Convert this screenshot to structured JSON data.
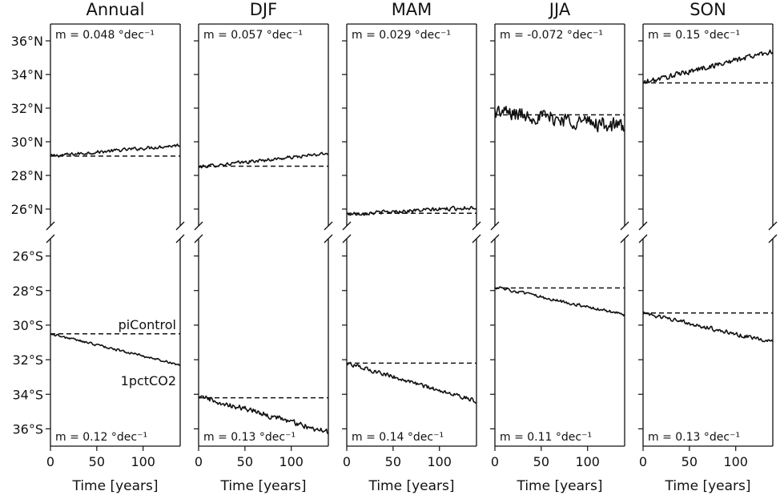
{
  "chart_data": {
    "type": "line",
    "x_label": "Time [years]",
    "x_ticks": [
      0,
      50,
      100
    ],
    "xlim": [
      0,
      140
    ],
    "top_ylim": [
      25,
      37
    ],
    "top_ytick_labels": [
      {
        "value": 26,
        "label": "26°N"
      },
      {
        "value": 28,
        "label": "28°N"
      },
      {
        "value": 30,
        "label": "30°N"
      },
      {
        "value": 32,
        "label": "32°N"
      },
      {
        "value": 34,
        "label": "34°N"
      },
      {
        "value": 36,
        "label": "36°N"
      }
    ],
    "bottom_ylim": [
      -37,
      -25
    ],
    "bottom_ytick_labels": [
      {
        "value": -26,
        "label": "26°S"
      },
      {
        "value": -28,
        "label": "28°S"
      },
      {
        "value": -30,
        "label": "30°S"
      },
      {
        "value": -32,
        "label": "32°S"
      },
      {
        "value": -34,
        "label": "34°S"
      },
      {
        "value": -36,
        "label": "36°S"
      }
    ],
    "legend": {
      "piControl": "piControl",
      "onepct": "1pctCO2"
    },
    "panels": [
      {
        "title": "Annual",
        "north": {
          "picontrol": 29.15,
          "start": 29.15,
          "end": 29.8,
          "noise": 0.12,
          "slope_label": "m = 0.048 °dec⁻¹"
        },
        "south": {
          "picontrol": -30.5,
          "start": -30.5,
          "end": -32.3,
          "noise": 0.08,
          "slope_label": "m = 0.12 °dec⁻¹"
        }
      },
      {
        "title": "DJF",
        "north": {
          "picontrol": 28.55,
          "start": 28.5,
          "end": 29.3,
          "noise": 0.12,
          "slope_label": "m = 0.057 °dec⁻¹"
        },
        "south": {
          "picontrol": -34.2,
          "start": -34.1,
          "end": -36.2,
          "noise": 0.2,
          "slope_label": "m = 0.13 °dec⁻¹"
        }
      },
      {
        "title": "MAM",
        "north": {
          "picontrol": 25.75,
          "start": 25.7,
          "end": 26.1,
          "noise": 0.14,
          "slope_label": "m = 0.029 °dec⁻¹"
        },
        "south": {
          "picontrol": -32.2,
          "start": -32.2,
          "end": -34.4,
          "noise": 0.14,
          "slope_label": "m = 0.14 °dec⁻¹"
        }
      },
      {
        "title": "JJA",
        "north": {
          "picontrol": 31.6,
          "start": 31.8,
          "end": 30.9,
          "noise": 0.55,
          "slope_label": "m = -0.072 °dec⁻¹"
        },
        "south": {
          "picontrol": -27.85,
          "start": -27.8,
          "end": -29.4,
          "noise": 0.1,
          "slope_label": "m = 0.11 °dec⁻¹"
        }
      },
      {
        "title": "SON",
        "north": {
          "picontrol": 33.5,
          "start": 33.5,
          "end": 35.4,
          "noise": 0.2,
          "slope_label": "m = 0.15 °dec⁻¹"
        },
        "south": {
          "picontrol": -29.3,
          "start": -29.3,
          "end": -31.0,
          "noise": 0.14,
          "slope_label": "m = 0.13 °dec⁻¹"
        }
      }
    ]
  }
}
